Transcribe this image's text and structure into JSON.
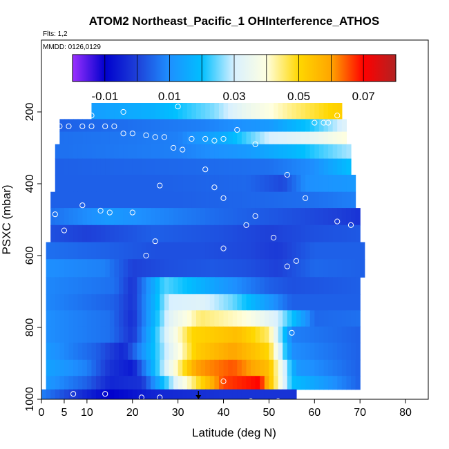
{
  "chart_data": {
    "type": "heatmap",
    "title": "ATOM2 Northeast_Pacific_1 OHInterference_ATHOS",
    "subtitle_flts": "Flts: 1,2",
    "subtitle_mmdd": "MMDD: 0126,0129",
    "xlabel": "Latitude (deg N)",
    "ylabel": "PSXC (mbar)",
    "xlim": [
      0,
      85
    ],
    "ylim": [
      1000,
      0
    ],
    "x_ticks": [
      0,
      5,
      10,
      20,
      30,
      40,
      50,
      60,
      70,
      80
    ],
    "x_tick_labels": [
      "0",
      "5",
      "10",
      "20",
      "30",
      "40",
      "50",
      "60",
      "70",
      "80"
    ],
    "y_ticks": [
      200,
      400,
      600,
      800,
      1000
    ],
    "y_tick_labels": [
      "200",
      "400",
      "600",
      "800",
      "1000"
    ],
    "colorbar": {
      "min": -0.02,
      "max": 0.08,
      "ticks": [
        -0.01,
        0.01,
        0.03,
        0.05,
        0.07
      ],
      "tick_labels": [
        "-0.01",
        "0.01",
        "0.03",
        "0.05",
        "0.07"
      ],
      "colors": [
        "#9b30ff",
        "#0000cd",
        "#1e40d8",
        "#1e90ff",
        "#00bfff",
        "#d8f0ff",
        "#ffffe0",
        "#ffd700",
        "#ffa500",
        "#ff0000",
        "#b22222"
      ]
    },
    "levels": [
      {
        "p": 200,
        "x0": 11,
        "x1": 66,
        "xs": [
          11,
          25,
          38,
          45,
          55,
          66
        ],
        "vs": [
          0.013,
          0.017,
          0.026,
          0.035,
          0.044,
          0.052
        ]
      },
      {
        "p": 240,
        "x0": 4,
        "x1": 67,
        "xs": [
          4,
          20,
          35,
          50,
          60,
          67
        ],
        "vs": [
          0.004,
          0.006,
          0.008,
          0.012,
          0.022,
          0.032
        ]
      },
      {
        "p": 270,
        "x0": 4,
        "x1": 67,
        "xs": [
          4,
          20,
          30,
          40,
          50,
          60,
          67
        ],
        "vs": [
          0.006,
          0.007,
          0.008,
          0.016,
          0.03,
          0.034,
          0.04
        ]
      },
      {
        "p": 310,
        "x0": 3,
        "x1": 68,
        "xs": [
          3,
          30,
          45,
          55,
          68
        ],
        "vs": [
          0.006,
          0.008,
          0.012,
          0.018,
          0.028
        ]
      },
      {
        "p": 350,
        "x0": 3,
        "x1": 68,
        "xs": [
          3,
          30,
          50,
          60,
          68
        ],
        "vs": [
          0.004,
          0.005,
          0.006,
          0.01,
          0.02
        ]
      },
      {
        "p": 400,
        "x0": 3,
        "x1": 69,
        "xs": [
          3,
          25,
          45,
          53,
          58,
          69
        ],
        "vs": [
          0.004,
          0.004,
          0.005,
          0.001,
          0.01,
          0.012
        ]
      },
      {
        "p": 445,
        "x0": 2,
        "x1": 69,
        "xs": [
          2,
          30,
          50,
          60,
          69
        ],
        "vs": [
          0.004,
          0.004,
          0.005,
          0.006,
          0.008
        ]
      },
      {
        "p": 490,
        "x0": 2,
        "x1": 70,
        "xs": [
          2,
          15,
          25,
          40,
          55,
          65,
          70
        ],
        "vs": [
          0.006,
          0.012,
          0.009,
          0.005,
          0.002,
          0.0,
          -0.002
        ]
      },
      {
        "p": 540,
        "x0": 2,
        "x1": 70,
        "xs": [
          2,
          10,
          25,
          40,
          50,
          60,
          70
        ],
        "vs": [
          0.002,
          0.0,
          0.004,
          0.002,
          0.0,
          0.002,
          0.003
        ]
      },
      {
        "p": 585,
        "x0": 1,
        "x1": 71,
        "xs": [
          1,
          15,
          25,
          35,
          45,
          52,
          60,
          71
        ],
        "vs": [
          0.006,
          0.004,
          0.002,
          0.002,
          0.001,
          -0.001,
          0.004,
          0.004
        ]
      },
      {
        "p": 635,
        "x0": 1,
        "x1": 71,
        "xs": [
          1,
          14,
          20,
          28,
          38,
          45,
          52,
          60,
          71
        ],
        "vs": [
          0.01,
          0.008,
          0.0,
          0.002,
          0.003,
          0.002,
          0.0,
          0.005,
          0.004
        ]
      },
      {
        "p": 685,
        "x0": 1,
        "x1": 70,
        "xs": [
          1,
          16,
          20,
          27,
          32,
          40,
          50,
          55,
          70
        ],
        "vs": [
          0.009,
          0.006,
          -0.002,
          0.024,
          0.02,
          0.012,
          0.004,
          0.002,
          0.004
        ]
      },
      {
        "p": 730,
        "x0": 1,
        "x1": 70,
        "xs": [
          1,
          16,
          20,
          28,
          35,
          42,
          50,
          55,
          70
        ],
        "vs": [
          0.009,
          0.004,
          -0.002,
          0.03,
          0.032,
          0.025,
          0.012,
          0.004,
          0.004
        ]
      },
      {
        "p": 775,
        "x0": 1,
        "x1": 70,
        "xs": [
          1,
          15,
          20,
          28,
          35,
          45,
          52,
          60,
          70
        ],
        "vs": [
          0.01,
          0.006,
          -0.003,
          0.032,
          0.045,
          0.04,
          0.03,
          0.005,
          0.006
        ]
      },
      {
        "p": 820,
        "x0": 1,
        "x1": 70,
        "xs": [
          1,
          15,
          20,
          27,
          33,
          43,
          50,
          55,
          70
        ],
        "vs": [
          0.01,
          0.006,
          -0.002,
          0.03,
          0.05,
          0.055,
          0.045,
          0.008,
          0.004
        ]
      },
      {
        "p": 865,
        "x0": 1,
        "x1": 70,
        "xs": [
          1,
          12,
          18,
          27,
          34,
          42,
          50,
          55,
          70
        ],
        "vs": [
          0.012,
          0.004,
          -0.004,
          0.028,
          0.052,
          0.06,
          0.05,
          0.01,
          0.004
        ]
      },
      {
        "p": 915,
        "x0": 1,
        "x1": 70,
        "xs": [
          1,
          10,
          15,
          20,
          27,
          34,
          42,
          50,
          56,
          70
        ],
        "vs": [
          0.014,
          0.008,
          -0.002,
          -0.006,
          0.03,
          0.06,
          0.065,
          0.055,
          0.012,
          0.004
        ]
      },
      {
        "p": 955,
        "x0": 1,
        "x1": 70,
        "xs": [
          1,
          10,
          15,
          22,
          30,
          40,
          48,
          55,
          70
        ],
        "vs": [
          0.012,
          0.004,
          -0.004,
          -0.002,
          0.034,
          0.066,
          0.07,
          0.02,
          0.004
        ]
      },
      {
        "p": 990,
        "x0": 0,
        "x1": 56,
        "xs": [
          0,
          8,
          15,
          25,
          40,
          56
        ],
        "vs": [
          0.008,
          -0.002,
          -0.01,
          -0.004,
          -0.002,
          -0.002
        ]
      }
    ],
    "samples": [
      [
        11,
        210
      ],
      [
        18,
        200
      ],
      [
        30,
        185
      ],
      [
        65,
        210
      ],
      [
        4,
        240
      ],
      [
        6,
        240
      ],
      [
        9,
        240
      ],
      [
        11,
        240
      ],
      [
        14,
        240
      ],
      [
        16,
        240
      ],
      [
        18,
        260
      ],
      [
        20,
        260
      ],
      [
        23,
        265
      ],
      [
        25,
        270
      ],
      [
        27,
        270
      ],
      [
        29,
        300
      ],
      [
        31,
        305
      ],
      [
        33,
        275
      ],
      [
        36,
        275
      ],
      [
        38,
        280
      ],
      [
        40,
        275
      ],
      [
        43,
        250
      ],
      [
        47,
        290
      ],
      [
        60,
        230
      ],
      [
        62,
        230
      ],
      [
        63,
        230
      ],
      [
        36,
        360
      ],
      [
        38,
        410
      ],
      [
        26,
        405
      ],
      [
        40,
        440
      ],
      [
        54,
        375
      ],
      [
        58,
        440
      ],
      [
        3,
        485
      ],
      [
        9,
        460
      ],
      [
        13,
        475
      ],
      [
        15,
        480
      ],
      [
        20,
        480
      ],
      [
        45,
        515
      ],
      [
        47,
        490
      ],
      [
        65,
        505
      ],
      [
        68,
        515
      ],
      [
        5,
        530
      ],
      [
        25,
        560
      ],
      [
        40,
        580
      ],
      [
        51,
        550
      ],
      [
        72,
        570
      ],
      [
        23,
        600
      ],
      [
        54,
        630
      ],
      [
        56,
        615
      ],
      [
        55,
        815
      ],
      [
        40,
        950
      ],
      [
        71,
        925
      ],
      [
        7,
        985
      ],
      [
        14,
        985
      ],
      [
        22,
        995
      ],
      [
        26,
        995
      ],
      [
        46,
        1005
      ],
      [
        52,
        1005
      ],
      [
        57,
        1000
      ]
    ],
    "marker": [
      34.5,
      1000
    ]
  }
}
